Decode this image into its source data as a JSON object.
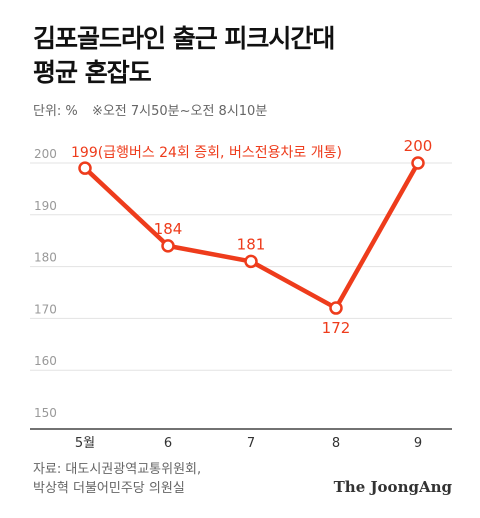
{
  "header": {
    "title_line1": "김포골드라인 출근 피크시간대",
    "title_line2": "평균 혼잡도"
  },
  "unit": {
    "label": "단위: %",
    "note": "※오전 7시50분~오전 8시10분"
  },
  "chart_data": {
    "type": "line",
    "categories": [
      "5월",
      "6",
      "7",
      "8",
      "9"
    ],
    "values": [
      199,
      184,
      181,
      172,
      200
    ],
    "data_labels": [
      "199(급행버스 24회 증회, 버스전용차로 개통)",
      "184",
      "181",
      "172",
      "200"
    ],
    "y_ticks": [
      150,
      160,
      170,
      180,
      190,
      200
    ],
    "ylim": [
      150,
      200
    ],
    "grid": true,
    "xlabel": "",
    "ylabel": "",
    "colors": {
      "line": "#ee3c1c",
      "marker_fill": "#ffffff",
      "grid": "#e3e3e3",
      "axis": "#444444",
      "tick_text": "#999999",
      "category_text": "#333333"
    }
  },
  "source": {
    "line1": "자료: 대도시권광역교통위원회,",
    "line2": "박상혁 더불어민주당 의원실"
  },
  "logo": {
    "text": "The JoongAng"
  }
}
